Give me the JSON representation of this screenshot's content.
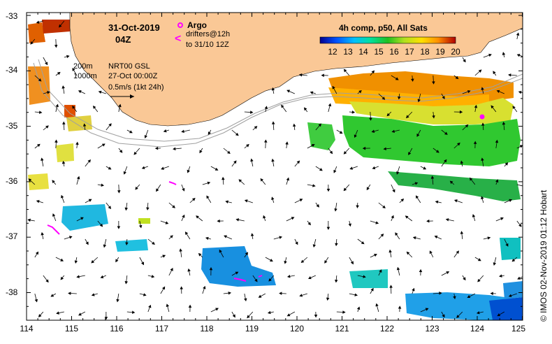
{
  "map": {
    "date": "31-Oct-2019",
    "time": "04Z",
    "product": "NRT00 GSL",
    "product_date": "27-Oct 00:00Z",
    "scale_label": "0.5m/s (1kt 24h)",
    "isobath_labels": [
      "200m",
      "1000m"
    ],
    "credit": "© IMOS 02-Nov-2019 01:12 Hobart"
  },
  "legend": {
    "argo_label": "Argo",
    "argo_color": "#ff00ff",
    "drifter_symbol": "<",
    "drifters_label_1": "drifters@12h",
    "drifters_label_2": "to 31/10 12Z",
    "drifter_color": "#ff00ff"
  },
  "colorbar": {
    "title": "4h comp, p50, All Sats",
    "ticks": [
      "12",
      "13",
      "14",
      "15",
      "16",
      "17",
      "18",
      "19",
      "20"
    ],
    "colors": [
      "#00008f",
      "#0050ff",
      "#00bfff",
      "#00e0a0",
      "#20c020",
      "#b0e020",
      "#ffe000",
      "#ff9000",
      "#e04000",
      "#b00000"
    ]
  },
  "axes": {
    "x_ticks": [
      "114",
      "115",
      "116",
      "117",
      "118",
      "119",
      "120",
      "121",
      "122",
      "123",
      "124",
      "125"
    ],
    "y_ticks": [
      "-33",
      "-34",
      "-35",
      "-36",
      "-37",
      "-38"
    ]
  },
  "colors": {
    "land": "#fac896",
    "isobath": "#a0a0a0"
  }
}
